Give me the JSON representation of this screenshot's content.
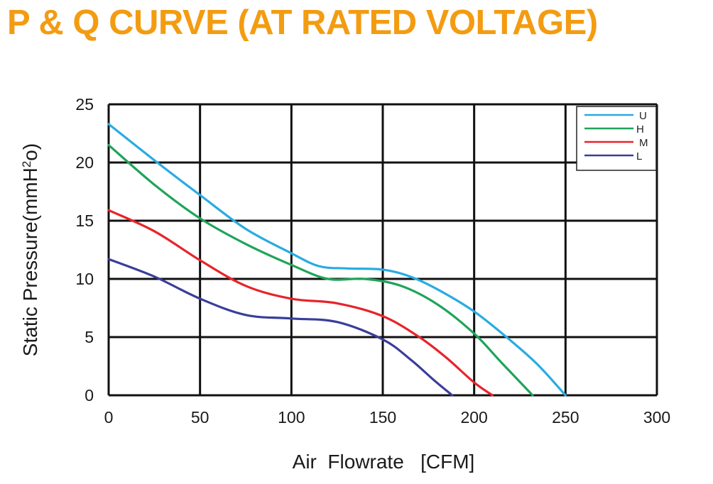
{
  "title": "P & Q CURVE (AT RATED VOLTAGE)",
  "colors": {
    "title": "#f39c12",
    "grid": "#111111",
    "U": "#29abe2",
    "H": "#1fa45a",
    "M": "#e8232a",
    "L": "#3a3d9a"
  },
  "chart_data": {
    "type": "line",
    "xlabel": "Air  Flowrate   [CFM]",
    "ylabel_main": "Static Pressure(mmH",
    "ylabel_sup": "2",
    "ylabel_end": "o)",
    "xlim": [
      0,
      300
    ],
    "ylim": [
      0,
      25
    ],
    "x_ticks": [
      0,
      50,
      100,
      150,
      200,
      250,
      300
    ],
    "y_ticks": [
      0,
      5,
      10,
      15,
      20,
      25
    ],
    "grid": true,
    "legend_position": "top-right",
    "series": [
      {
        "name": "U",
        "color": "#29abe2",
        "x": [
          0,
          25,
          50,
          75,
          100,
          115,
          130,
          150,
          165,
          180,
          200,
          220,
          235,
          250
        ],
        "y": [
          23.3,
          20.2,
          17.2,
          14.3,
          12.2,
          11.1,
          10.9,
          10.8,
          10.2,
          9.1,
          7.2,
          4.7,
          2.6,
          0
        ]
      },
      {
        "name": "H",
        "color": "#1fa45a",
        "x": [
          0,
          25,
          50,
          75,
          100,
          120,
          140,
          160,
          180,
          200,
          215,
          232
        ],
        "y": [
          21.5,
          18.1,
          15.2,
          13.0,
          11.2,
          10.0,
          10.0,
          9.4,
          7.8,
          5.3,
          2.8,
          0
        ]
      },
      {
        "name": "M",
        "color": "#e8232a",
        "x": [
          0,
          25,
          50,
          75,
          100,
          125,
          150,
          170,
          185,
          200,
          210
        ],
        "y": [
          15.9,
          14.1,
          11.6,
          9.4,
          8.3,
          7.9,
          6.8,
          5.0,
          3.2,
          1.1,
          0
        ]
      },
      {
        "name": "L",
        "color": "#3a3d9a",
        "x": [
          0,
          25,
          50,
          75,
          100,
          125,
          150,
          165,
          178,
          188
        ],
        "y": [
          11.7,
          10.2,
          8.3,
          6.9,
          6.6,
          6.3,
          4.8,
          3.1,
          1.3,
          0
        ]
      }
    ]
  }
}
